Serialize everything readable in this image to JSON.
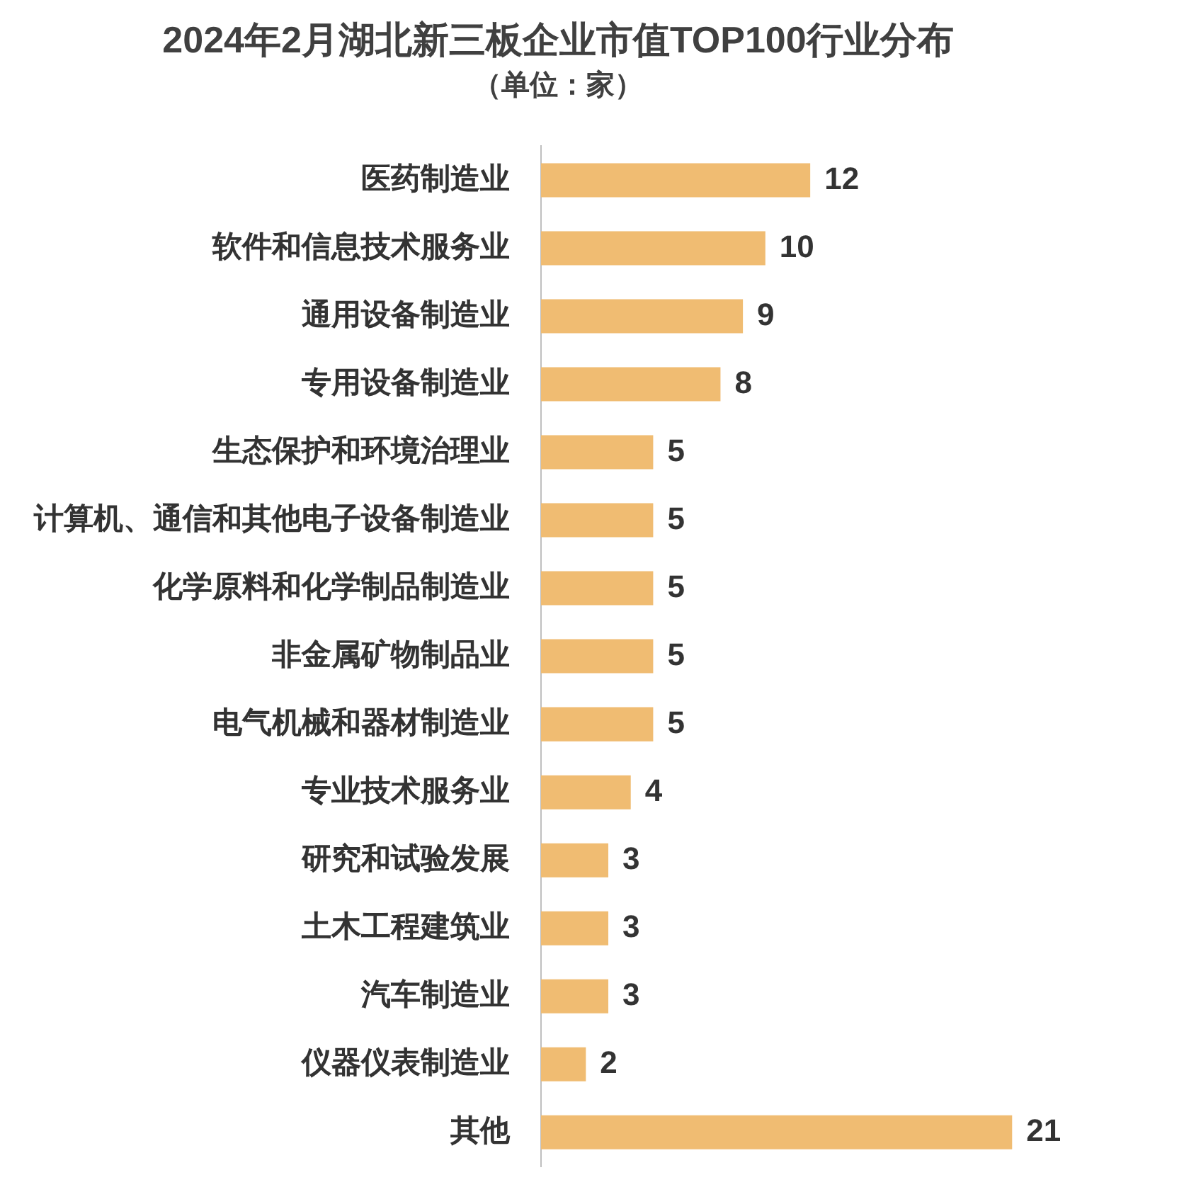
{
  "chart_data": {
    "type": "bar",
    "orientation": "horizontal",
    "title": "2024年2月湖北新三板企业市值TOP100行业分布",
    "subtitle": "（单位：家）",
    "categories": [
      "医药制造业",
      "软件和信息技术服务业",
      "通用设备制造业",
      "专用设备制造业",
      "生态保护和环境治理业",
      "计算机、通信和其他电子设备制造业",
      "化学原料和化学制品制造业",
      "非金属矿物制品业",
      "电气机械和器材制造业",
      "专业技术服务业",
      "研究和试验发展",
      "土木工程建筑业",
      "汽车制造业",
      "仪器仪表制造业",
      "其他"
    ],
    "values": [
      12,
      10,
      9,
      8,
      5,
      5,
      5,
      5,
      5,
      4,
      3,
      3,
      3,
      2,
      21
    ],
    "color": "#f0bc72",
    "data_labels": true,
    "legend": false
  }
}
